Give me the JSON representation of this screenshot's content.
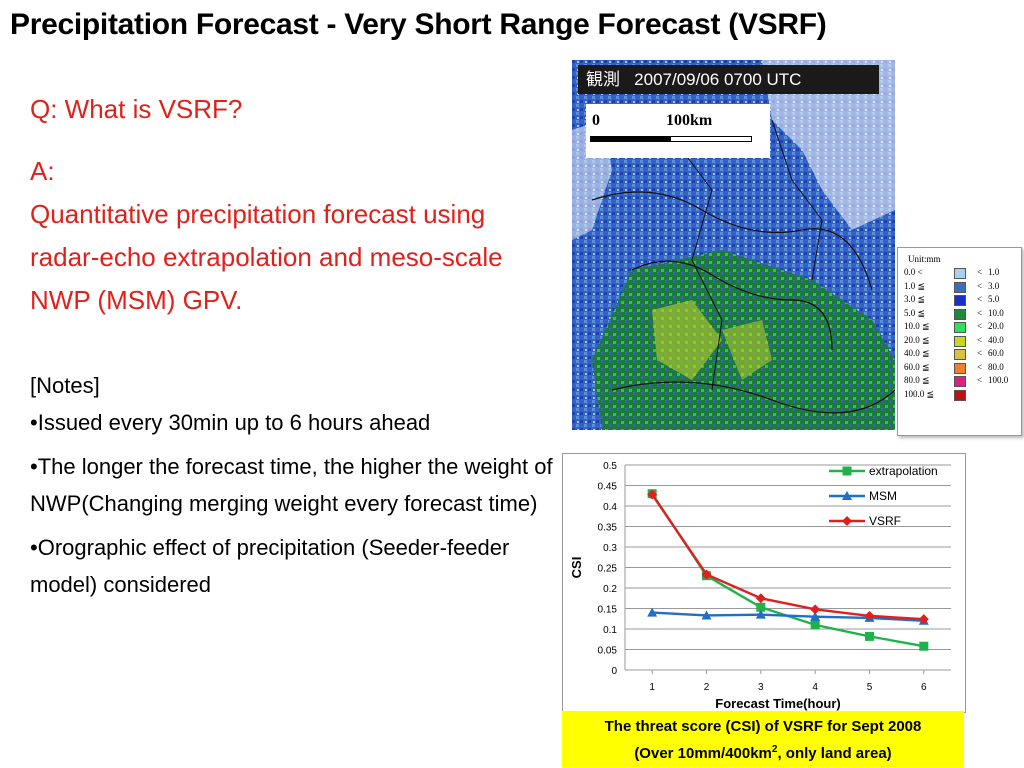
{
  "title": "Precipitation Forecast - Very Short Range Forecast (VSRF)",
  "question": "Q: What is VSRF?",
  "answer": {
    "label": "A:",
    "text": "Quantitative precipitation forecast using radar-echo extrapolation and meso-scale NWP (MSM) GPV."
  },
  "notes": {
    "header": "[Notes]",
    "bullets": [
      "•Issued every 30min up to 6 hours ahead",
      "•The longer the forecast time, the higher the weight of NWP(Changing merging weight every forecast time)",
      "•Orographic effect of precipitation (Seeder-feeder model) considered"
    ]
  },
  "map": {
    "header_jp": "観測",
    "header_time": "2007/09/06 0700 UTC",
    "scale_start": "0",
    "scale_end": "100km"
  },
  "legend": {
    "unit": "Unit:mm",
    "rows": [
      {
        "lo": "0.0 <",
        "hi": "1.0",
        "color": "#a8d0f0"
      },
      {
        "lo": "1.0 ≦",
        "hi": "3.0",
        "color": "#3a6fc0"
      },
      {
        "lo": "3.0 ≦",
        "hi": "5.0",
        "color": "#1a2fd0"
      },
      {
        "lo": "5.0 ≦",
        "hi": "10.0",
        "color": "#1c8a3a"
      },
      {
        "lo": "10.0 ≦",
        "hi": "20.0",
        "color": "#2ee05a"
      },
      {
        "lo": "20.0 ≦",
        "hi": "40.0",
        "color": "#c8d820"
      },
      {
        "lo": "40.0 ≦",
        "hi": "60.0",
        "color": "#d8c040"
      },
      {
        "lo": "60.0 ≦",
        "hi": "80.0",
        "color": "#f08030"
      },
      {
        "lo": "80.0 ≦",
        "hi": "100.0",
        "color": "#e02080"
      },
      {
        "lo": "100.0 ≦",
        "hi": "",
        "color": "#c01010"
      }
    ]
  },
  "chart_data": {
    "type": "line",
    "x": [
      1,
      2,
      3,
      4,
      5,
      6
    ],
    "xlabel": "Forecast Time(hour)",
    "ylabel": "CSI",
    "ylim": [
      0,
      0.5
    ],
    "yticks": [
      "0",
      "0.05",
      "0.1",
      "0.15",
      "0.2",
      "0.25",
      "0.3",
      "0.35",
      "0.4",
      "0.45",
      "0.5"
    ],
    "grid": true,
    "legend_position": "top-right",
    "series": [
      {
        "name": "extrapolation",
        "color": "#1db34a",
        "marker": "square",
        "values": [
          0.43,
          0.23,
          0.153,
          0.11,
          0.082,
          0.058
        ]
      },
      {
        "name": "MSM",
        "color": "#1f6fc6",
        "marker": "triangle",
        "values": [
          0.14,
          0.133,
          0.135,
          0.13,
          0.127,
          0.12
        ]
      },
      {
        "name": "VSRF",
        "color": "#e02020",
        "marker": "diamond",
        "values": [
          0.428,
          0.233,
          0.175,
          0.148,
          0.132,
          0.124
        ]
      }
    ]
  },
  "caption": {
    "line1": "The threat score (CSI) of VSRF for Sept 2008",
    "line2_pre": "(Over  10mm/400km",
    "line2_sup": "2",
    "line2_post": ", only land area)"
  }
}
